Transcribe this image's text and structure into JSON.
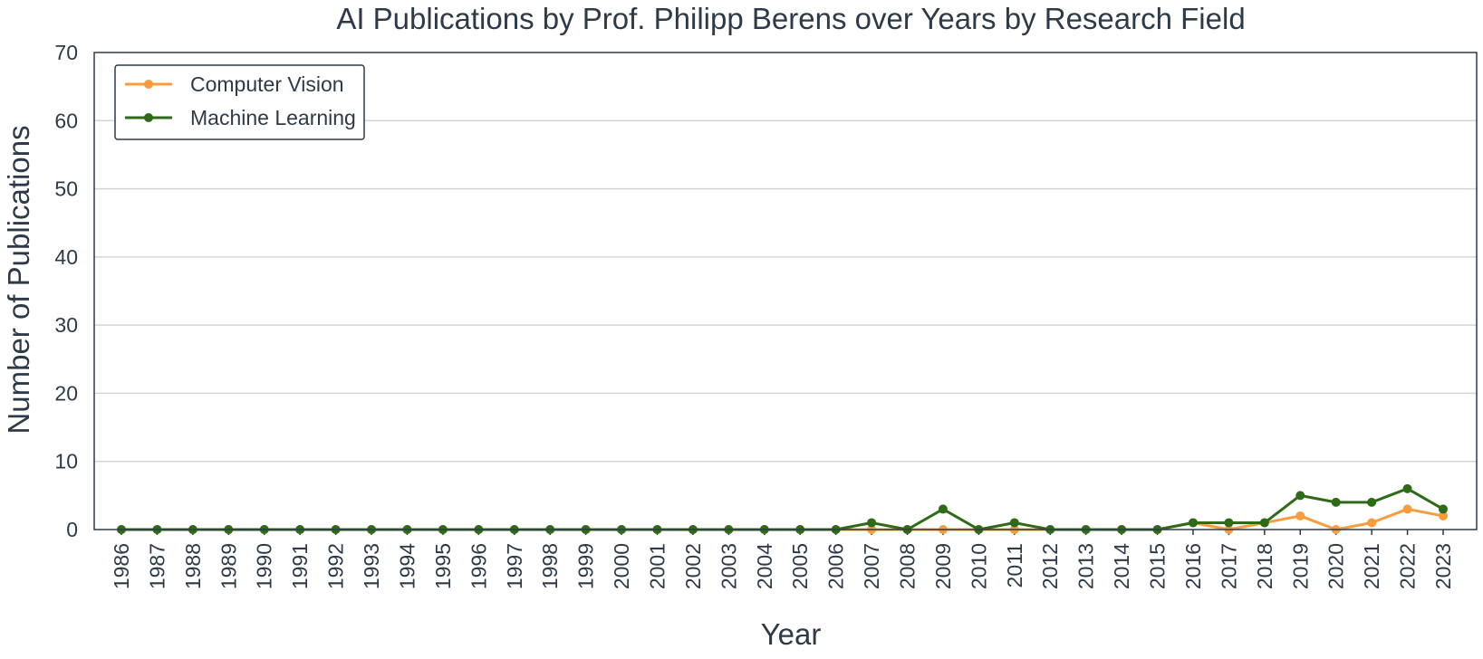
{
  "chart_data": {
    "type": "line",
    "title": "AI Publications by Prof. Philipp Berens over Years by Research Field",
    "xlabel": "Year",
    "ylabel": "Number of Publications",
    "ylim": [
      0,
      70
    ],
    "yticks": [
      "0",
      "10",
      "20",
      "30",
      "40",
      "50",
      "60",
      "70"
    ],
    "grid": "horizontal",
    "legend_position": "top-left",
    "x": [
      "1986",
      "1987",
      "1988",
      "1989",
      "1990",
      "1991",
      "1992",
      "1993",
      "1994",
      "1995",
      "1996",
      "1997",
      "1998",
      "1999",
      "2000",
      "2001",
      "2002",
      "2003",
      "2004",
      "2005",
      "2006",
      "2007",
      "2008",
      "2009",
      "2010",
      "2011",
      "2012",
      "2013",
      "2014",
      "2015",
      "2016",
      "2017",
      "2018",
      "2019",
      "2020",
      "2021",
      "2022",
      "2023"
    ],
    "series": [
      {
        "name": "Computer Vision",
        "color": "#f89c3d",
        "values": [
          0,
          0,
          0,
          0,
          0,
          0,
          0,
          0,
          0,
          0,
          0,
          0,
          0,
          0,
          0,
          0,
          0,
          0,
          0,
          0,
          0,
          0,
          0,
          0,
          0,
          0,
          0,
          0,
          0,
          0,
          1,
          0,
          1,
          2,
          0,
          1,
          3,
          2
        ]
      },
      {
        "name": "Machine Learning",
        "color": "#2e6b17",
        "values": [
          0,
          0,
          0,
          0,
          0,
          0,
          0,
          0,
          0,
          0,
          0,
          0,
          0,
          0,
          0,
          0,
          0,
          0,
          0,
          0,
          0,
          1,
          0,
          3,
          0,
          1,
          0,
          0,
          0,
          0,
          1,
          1,
          1,
          5,
          4,
          4,
          6,
          3
        ]
      }
    ]
  }
}
